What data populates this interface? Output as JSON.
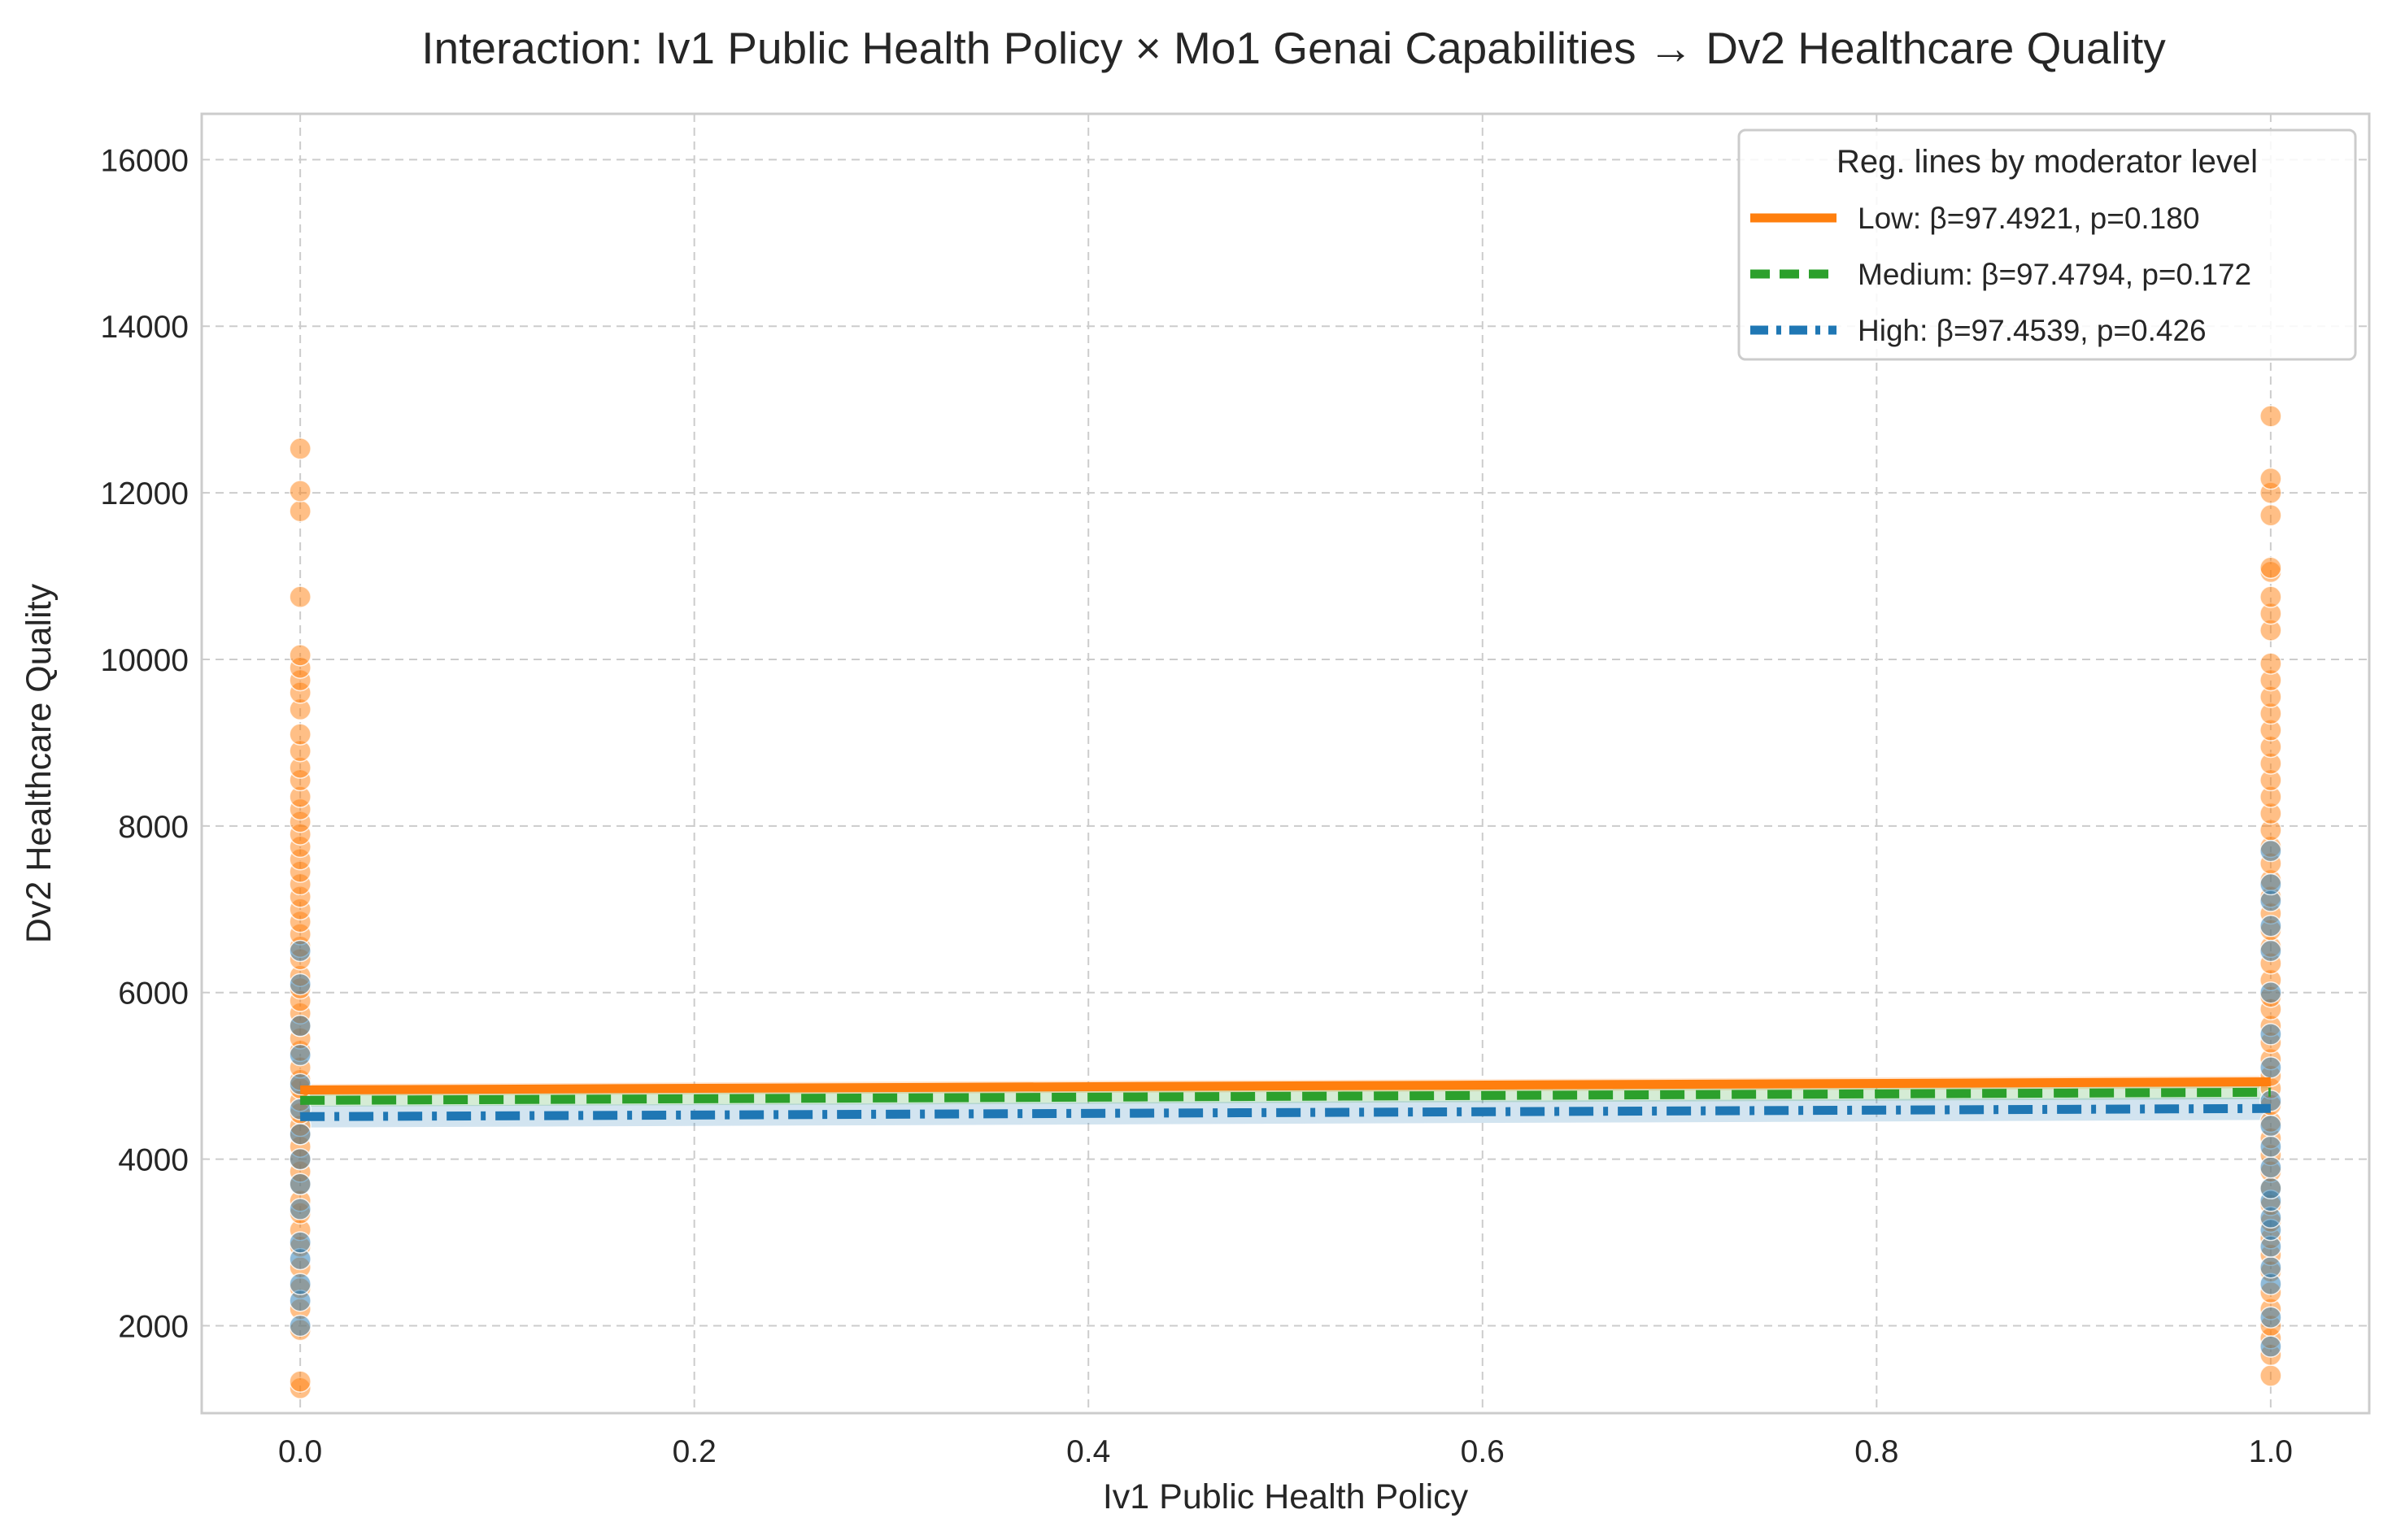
{
  "chart_data": {
    "type": "scatter",
    "title": "Interaction: Iv1 Public Health Policy × Mo1 Genai Capabilities → Dv2 Healthcare Quality",
    "xlabel": "Iv1 Public Health Policy",
    "ylabel": "Dv2 Healthcare Quality",
    "xlim": [
      -0.05,
      1.05
    ],
    "ylim": [
      950,
      16550
    ],
    "xticks": [
      0.0,
      0.2,
      0.4,
      0.6,
      0.8,
      1.0
    ],
    "xtick_labels": [
      "0.0",
      "0.2",
      "0.4",
      "0.6",
      "0.8",
      "1.0"
    ],
    "yticks": [
      2000,
      4000,
      6000,
      8000,
      10000,
      12000,
      14000,
      16000
    ],
    "ytick_labels": [
      "2000",
      "4000",
      "6000",
      "8000",
      "10000",
      "12000",
      "14000",
      "16000"
    ],
    "grid": true,
    "legend": {
      "title": "Reg. lines by moderator level",
      "placement": "top-right"
    },
    "series": [
      {
        "name": "Low: β=97.4921, p=0.180",
        "level": "Low",
        "color": "#ff7f0e",
        "line_style": "solid",
        "line": {
          "x": [
            0.0,
            1.0
          ],
          "y": [
            4830,
            4928
          ]
        },
        "ci_band": {
          "lower": [
            4760,
            4850
          ],
          "upper": [
            4900,
            5000
          ]
        },
        "points": [
          {
            "x": 0,
            "y": 1250
          },
          {
            "x": 0,
            "y": 1330
          },
          {
            "x": 0,
            "y": 1950
          },
          {
            "x": 0,
            "y": 2200
          },
          {
            "x": 0,
            "y": 2450
          },
          {
            "x": 0,
            "y": 2700
          },
          {
            "x": 0,
            "y": 2950
          },
          {
            "x": 0,
            "y": 3150
          },
          {
            "x": 0,
            "y": 3350
          },
          {
            "x": 0,
            "y": 3500
          },
          {
            "x": 0,
            "y": 3700
          },
          {
            "x": 0,
            "y": 3850
          },
          {
            "x": 0,
            "y": 4000
          },
          {
            "x": 0,
            "y": 4150
          },
          {
            "x": 0,
            "y": 4300
          },
          {
            "x": 0,
            "y": 4400
          },
          {
            "x": 0,
            "y": 4550
          },
          {
            "x": 0,
            "y": 4700
          },
          {
            "x": 0,
            "y": 4850
          },
          {
            "x": 0,
            "y": 4950
          },
          {
            "x": 0,
            "y": 5100
          },
          {
            "x": 0,
            "y": 5300
          },
          {
            "x": 0,
            "y": 5450
          },
          {
            "x": 0,
            "y": 5600
          },
          {
            "x": 0,
            "y": 5750
          },
          {
            "x": 0,
            "y": 5900
          },
          {
            "x": 0,
            "y": 6050
          },
          {
            "x": 0,
            "y": 6200
          },
          {
            "x": 0,
            "y": 6400
          },
          {
            "x": 0,
            "y": 6550
          },
          {
            "x": 0,
            "y": 6700
          },
          {
            "x": 0,
            "y": 6850
          },
          {
            "x": 0,
            "y": 7000
          },
          {
            "x": 0,
            "y": 7150
          },
          {
            "x": 0,
            "y": 7300
          },
          {
            "x": 0,
            "y": 7450
          },
          {
            "x": 0,
            "y": 7600
          },
          {
            "x": 0,
            "y": 7750
          },
          {
            "x": 0,
            "y": 7900
          },
          {
            "x": 0,
            "y": 8050
          },
          {
            "x": 0,
            "y": 8200
          },
          {
            "x": 0,
            "y": 8350
          },
          {
            "x": 0,
            "y": 8550
          },
          {
            "x": 0,
            "y": 8700
          },
          {
            "x": 0,
            "y": 8900
          },
          {
            "x": 0,
            "y": 9100
          },
          {
            "x": 0,
            "y": 9400
          },
          {
            "x": 0,
            "y": 9600
          },
          {
            "x": 0,
            "y": 9750
          },
          {
            "x": 0,
            "y": 9900
          },
          {
            "x": 0,
            "y": 10050
          },
          {
            "x": 0,
            "y": 10750
          },
          {
            "x": 0,
            "y": 11780
          },
          {
            "x": 0,
            "y": 12020
          },
          {
            "x": 0,
            "y": 12530
          },
          {
            "x": 1,
            "y": 1400
          },
          {
            "x": 1,
            "y": 1650
          },
          {
            "x": 1,
            "y": 1850
          },
          {
            "x": 1,
            "y": 2000
          },
          {
            "x": 1,
            "y": 2200
          },
          {
            "x": 1,
            "y": 2400
          },
          {
            "x": 1,
            "y": 2650
          },
          {
            "x": 1,
            "y": 2850
          },
          {
            "x": 1,
            "y": 3050
          },
          {
            "x": 1,
            "y": 3250
          },
          {
            "x": 1,
            "y": 3450
          },
          {
            "x": 1,
            "y": 3650
          },
          {
            "x": 1,
            "y": 3850
          },
          {
            "x": 1,
            "y": 4050
          },
          {
            "x": 1,
            "y": 4250
          },
          {
            "x": 1,
            "y": 4450
          },
          {
            "x": 1,
            "y": 4650
          },
          {
            "x": 1,
            "y": 4850
          },
          {
            "x": 1,
            "y": 5000
          },
          {
            "x": 1,
            "y": 5200
          },
          {
            "x": 1,
            "y": 5400
          },
          {
            "x": 1,
            "y": 5600
          },
          {
            "x": 1,
            "y": 5800
          },
          {
            "x": 1,
            "y": 5950
          },
          {
            "x": 1,
            "y": 6150
          },
          {
            "x": 1,
            "y": 6350
          },
          {
            "x": 1,
            "y": 6550
          },
          {
            "x": 1,
            "y": 6750
          },
          {
            "x": 1,
            "y": 6950
          },
          {
            "x": 1,
            "y": 7150
          },
          {
            "x": 1,
            "y": 7350
          },
          {
            "x": 1,
            "y": 7550
          },
          {
            "x": 1,
            "y": 7750
          },
          {
            "x": 1,
            "y": 7950
          },
          {
            "x": 1,
            "y": 8150
          },
          {
            "x": 1,
            "y": 8350
          },
          {
            "x": 1,
            "y": 8550
          },
          {
            "x": 1,
            "y": 8750
          },
          {
            "x": 1,
            "y": 8950
          },
          {
            "x": 1,
            "y": 9150
          },
          {
            "x": 1,
            "y": 9350
          },
          {
            "x": 1,
            "y": 9550
          },
          {
            "x": 1,
            "y": 9750
          },
          {
            "x": 1,
            "y": 9950
          },
          {
            "x": 1,
            "y": 10350
          },
          {
            "x": 1,
            "y": 10550
          },
          {
            "x": 1,
            "y": 10750
          },
          {
            "x": 1,
            "y": 11050
          },
          {
            "x": 1,
            "y": 11100
          },
          {
            "x": 1,
            "y": 11730
          },
          {
            "x": 1,
            "y": 12000
          },
          {
            "x": 1,
            "y": 12170
          },
          {
            "x": 1,
            "y": 12920
          }
        ]
      },
      {
        "name": "Medium: β=97.4794, p=0.172",
        "level": "Medium",
        "color": "#2ca02c",
        "line_style": "dashed",
        "line": {
          "x": [
            0.0,
            1.0
          ],
          "y": [
            4705,
            4803
          ]
        },
        "ci_band": {
          "lower": [
            4630,
            4720
          ],
          "upper": [
            4780,
            4880
          ]
        },
        "points": []
      },
      {
        "name": "High: β=97.4539, p=0.426",
        "level": "High",
        "color": "#1f77b4",
        "line_style": "dashdot",
        "line": {
          "x": [
            0.0,
            1.0
          ],
          "y": [
            4510,
            4608
          ]
        },
        "ci_band": {
          "lower": [
            4380,
            4470
          ],
          "upper": [
            4640,
            4740
          ]
        },
        "points": [
          {
            "x": 0,
            "y": 2000
          },
          {
            "x": 0,
            "y": 2300
          },
          {
            "x": 0,
            "y": 2500
          },
          {
            "x": 0,
            "y": 2800
          },
          {
            "x": 0,
            "y": 3000
          },
          {
            "x": 0,
            "y": 3400
          },
          {
            "x": 0,
            "y": 3700
          },
          {
            "x": 0,
            "y": 4000
          },
          {
            "x": 0,
            "y": 4300
          },
          {
            "x": 0,
            "y": 4600
          },
          {
            "x": 0,
            "y": 4900
          },
          {
            "x": 0,
            "y": 5250
          },
          {
            "x": 0,
            "y": 5600
          },
          {
            "x": 0,
            "y": 6100
          },
          {
            "x": 0,
            "y": 6500
          },
          {
            "x": 1,
            "y": 1750
          },
          {
            "x": 1,
            "y": 2100
          },
          {
            "x": 1,
            "y": 2500
          },
          {
            "x": 1,
            "y": 2700
          },
          {
            "x": 1,
            "y": 2950
          },
          {
            "x": 1,
            "y": 3150
          },
          {
            "x": 1,
            "y": 3300
          },
          {
            "x": 1,
            "y": 3500
          },
          {
            "x": 1,
            "y": 3650
          },
          {
            "x": 1,
            "y": 3900
          },
          {
            "x": 1,
            "y": 4150
          },
          {
            "x": 1,
            "y": 4400
          },
          {
            "x": 1,
            "y": 4700
          },
          {
            "x": 1,
            "y": 5100
          },
          {
            "x": 1,
            "y": 5500
          },
          {
            "x": 1,
            "y": 6000
          },
          {
            "x": 1,
            "y": 6500
          },
          {
            "x": 1,
            "y": 6800
          },
          {
            "x": 1,
            "y": 7100
          },
          {
            "x": 1,
            "y": 7300
          },
          {
            "x": 1,
            "y": 7700
          }
        ]
      }
    ]
  }
}
